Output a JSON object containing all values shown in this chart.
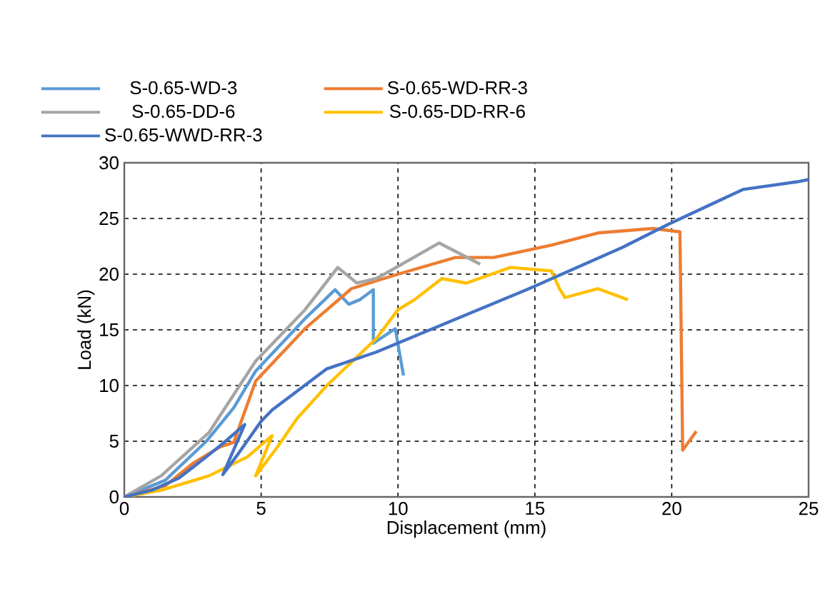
{
  "chart_data": {
    "type": "line",
    "xlabel": "Displacement (mm)",
    "ylabel": "Load (kN)",
    "xlim": [
      0,
      25
    ],
    "ylim": [
      0,
      30
    ],
    "xticks": [
      0,
      5,
      10,
      15,
      20,
      25
    ],
    "yticks": [
      0,
      5,
      10,
      15,
      20,
      25,
      30
    ],
    "grid": true,
    "legend": "top",
    "marker": "none",
    "line_style": "solid",
    "series": [
      {
        "name": "S-0.65-WD-3",
        "color": "#5b9bd5",
        "x": [
          0,
          1.5,
          3,
          4,
          4.8,
          6.6,
          7.7,
          8.2,
          8.6,
          9.1,
          9.1,
          9.9,
          10.2
        ],
        "values": [
          0,
          1.5,
          5,
          8,
          11.3,
          16.0,
          18.6,
          17.3,
          17.7,
          18.6,
          13.8,
          15.1,
          10.9
        ]
      },
      {
        "name": "S-0.65-WD-RR-3",
        "color": "#ed7d31",
        "x": [
          0,
          1.5,
          2.5,
          3.5,
          4.0,
          4.8,
          6.6,
          8.3,
          10.0,
          12.1,
          13.5,
          15.6,
          17.3,
          19.3,
          20.3,
          20.4,
          20.9
        ],
        "values": [
          0,
          1.0,
          3,
          4.5,
          4.9,
          10.4,
          15.1,
          18.7,
          20.0,
          21.5,
          21.5,
          22.6,
          23.7,
          24.1,
          23.8,
          4.2,
          5.9
        ]
      },
      {
        "name": "S-0.65-DD-6",
        "color": "#a5a5a5",
        "x": [
          0,
          1.35,
          3.1,
          4.8,
          6.6,
          7.8,
          8.5,
          9.2,
          9.5,
          11.5,
          13.0
        ],
        "values": [
          0,
          1.9,
          5.8,
          12.2,
          16.8,
          20.6,
          19.2,
          19.6,
          20.0,
          22.8,
          20.9
        ]
      },
      {
        "name": "S-0.65-DD-RR-6",
        "color": "#ffc000",
        "x": [
          0,
          1.35,
          3.1,
          4.5,
          5.4,
          4.8,
          5.6,
          6.3,
          7.4,
          9.2,
          10.0,
          10.6,
          11.6,
          12.5,
          14.1,
          15.6,
          15.9,
          16.1,
          17.3,
          18.4
        ],
        "values": [
          0,
          0.6,
          1.9,
          3.6,
          5.5,
          1.9,
          4.5,
          7.0,
          10.0,
          14.2,
          16.8,
          17.7,
          19.6,
          19.2,
          20.6,
          20.3,
          18.7,
          17.9,
          18.7,
          17.7
        ]
      },
      {
        "name": "S-0.65-WWD-RR-3",
        "color": "#4472c4",
        "x": [
          0,
          1,
          2,
          3,
          3.7,
          4.4,
          3.6,
          4.2,
          5.0,
          5.4,
          7.4,
          9.2,
          14.7,
          18.2,
          19.9,
          22.6,
          24.6,
          25
        ],
        "values": [
          0,
          0.6,
          1.7,
          3.6,
          5.0,
          6.5,
          2.0,
          4.0,
          6.8,
          7.8,
          11.5,
          13.0,
          18.6,
          22.4,
          24.5,
          27.6,
          28.3,
          28.5
        ]
      }
    ]
  }
}
